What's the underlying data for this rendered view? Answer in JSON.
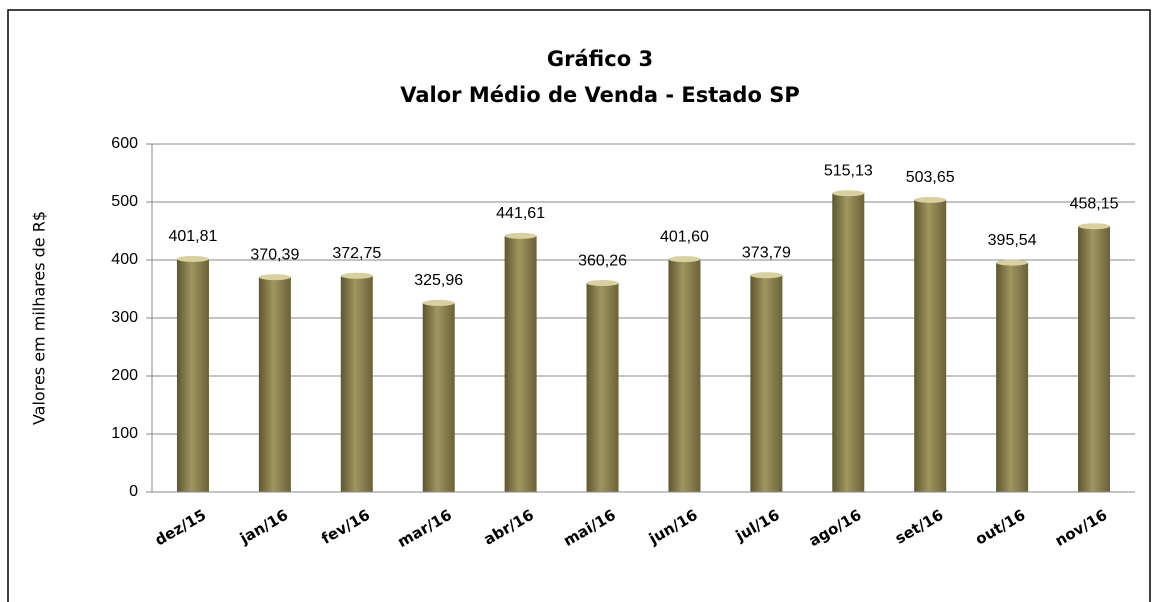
{
  "chart_data": {
    "type": "bar",
    "title": [
      "Gráfico 3",
      "Valor Médio de Venda - Estado SP"
    ],
    "y_label": "Valores em milhares de R$",
    "categories": [
      "dez/15",
      "jan/16",
      "fev/16",
      "mar/16",
      "abr/16",
      "mai/16",
      "jun/16",
      "jul/16",
      "ago/16",
      "set/16",
      "out/16",
      "nov/16"
    ],
    "values": [
      401.81,
      370.39,
      372.75,
      325.96,
      441.61,
      360.26,
      401.6,
      373.79,
      515.13,
      503.65,
      395.54,
      458.15
    ],
    "value_labels": [
      "401,81",
      "370,39",
      "372,75",
      "325,96",
      "441,61",
      "360,26",
      "401,60",
      "373,79",
      "515,13",
      "503,65",
      "395,54",
      "458,15"
    ],
    "color": "#a09660",
    "ylim": [
      0,
      600
    ],
    "yticks": [
      0,
      100,
      200,
      300,
      400,
      500,
      600
    ],
    "grid": true
  }
}
